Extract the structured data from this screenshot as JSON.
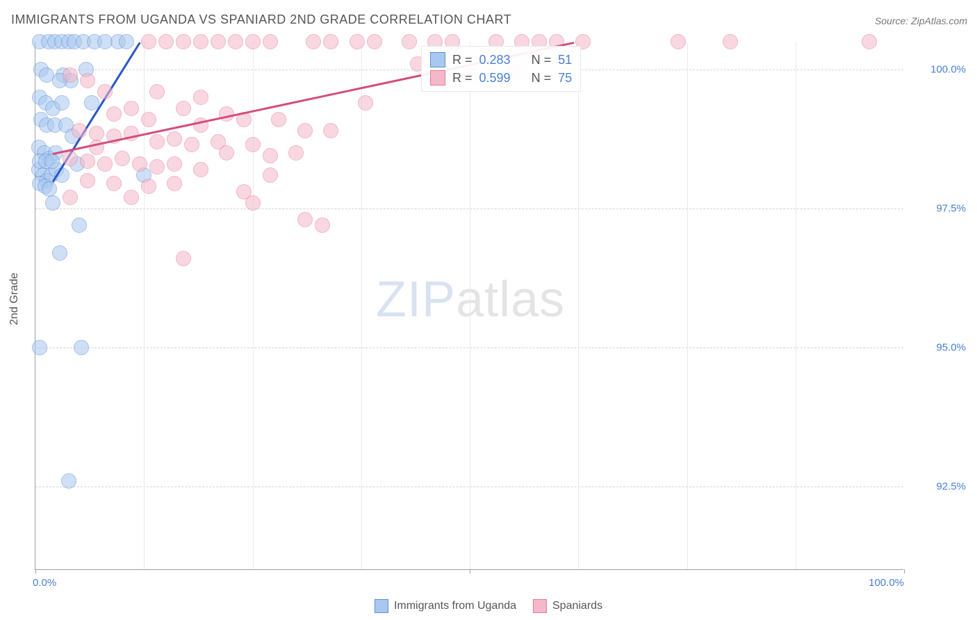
{
  "title": "IMMIGRANTS FROM UGANDA VS SPANIARD 2ND GRADE CORRELATION CHART",
  "source": "Source: ZipAtlas.com",
  "ylabel": "2nd Grade",
  "watermark": {
    "zip": "ZIP",
    "atlas": "atlas"
  },
  "chart": {
    "type": "scatter",
    "background_color": "#ffffff",
    "grid_color": "#d0d3d8",
    "axis_color": "#9aa0a6",
    "xlim": [
      0,
      100
    ],
    "ylim": [
      91.0,
      100.5
    ],
    "xtick_positions": [
      0,
      50,
      100
    ],
    "xtick_labels": [
      "0.0%",
      "",
      "100.0%"
    ],
    "inner_vgrids": [
      12.5,
      25,
      37.5,
      50,
      62.5,
      75,
      87.5
    ],
    "ytick_positions": [
      92.5,
      95.0,
      97.5,
      100.0
    ],
    "ytick_labels": [
      "92.5%",
      "95.0%",
      "97.5%",
      "100.0%"
    ],
    "marker_radius": 11,
    "marker_opacity": 0.55,
    "series": [
      {
        "name": "Immigrants from Uganda",
        "color_fill": "#a9c8f0",
        "color_stroke": "#5d8fd6",
        "r": 0.283,
        "n": 51,
        "trend": {
          "x1": 2,
          "y1": 98.0,
          "x2": 12,
          "y2": 100.5,
          "color": "#2a55c9"
        },
        "points": [
          [
            0.5,
            100.5
          ],
          [
            1.5,
            100.5
          ],
          [
            2.2,
            100.5
          ],
          [
            3,
            100.5
          ],
          [
            3.8,
            100.5
          ],
          [
            4.5,
            100.5
          ],
          [
            5.5,
            100.5
          ],
          [
            6.8,
            100.5
          ],
          [
            8,
            100.5
          ],
          [
            9.5,
            100.5
          ],
          [
            10.5,
            100.5
          ],
          [
            0.6,
            100.0
          ],
          [
            1.3,
            99.9
          ],
          [
            3.2,
            99.9
          ],
          [
            4.1,
            99.8
          ],
          [
            5.8,
            100.0
          ],
          [
            0.5,
            99.5
          ],
          [
            1.2,
            99.4
          ],
          [
            2.0,
            99.3
          ],
          [
            3.0,
            99.4
          ],
          [
            0.6,
            99.1
          ],
          [
            1.3,
            99.0
          ],
          [
            2.2,
            99.0
          ],
          [
            0.4,
            98.6
          ],
          [
            1.0,
            98.5
          ],
          [
            1.6,
            98.4
          ],
          [
            2.3,
            98.5
          ],
          [
            0.4,
            98.2
          ],
          [
            0.9,
            98.1
          ],
          [
            1.3,
            98.0
          ],
          [
            1.8,
            98.1
          ],
          [
            2.4,
            98.2
          ],
          [
            3.0,
            98.1
          ],
          [
            0.5,
            97.95
          ],
          [
            1.1,
            97.9
          ],
          [
            1.6,
            97.85
          ],
          [
            2.0,
            97.6
          ],
          [
            4.8,
            98.3
          ],
          [
            12.5,
            98.1
          ],
          [
            0.5,
            98.35
          ],
          [
            1.2,
            98.35
          ],
          [
            1.9,
            98.35
          ],
          [
            3.5,
            99.0
          ],
          [
            5,
            97.2
          ],
          [
            2.8,
            96.7
          ],
          [
            0.5,
            95.0
          ],
          [
            5.3,
            95.0
          ],
          [
            3.8,
            92.6
          ],
          [
            4.2,
            98.8
          ],
          [
            2.8,
            99.8
          ],
          [
            6.5,
            99.4
          ]
        ]
      },
      {
        "name": "Spaniards",
        "color_fill": "#f5b8c9",
        "color_stroke": "#e47a9a",
        "r": 0.599,
        "n": 75,
        "trend": {
          "x1": 2,
          "y1": 98.5,
          "x2": 62,
          "y2": 100.5,
          "color": "#d44d7a"
        },
        "points": [
          [
            13,
            100.5
          ],
          [
            15,
            100.5
          ],
          [
            17,
            100.5
          ],
          [
            19,
            100.5
          ],
          [
            21,
            100.5
          ],
          [
            23,
            100.5
          ],
          [
            25,
            100.5
          ],
          [
            27,
            100.5
          ],
          [
            32,
            100.5
          ],
          [
            34,
            100.5
          ],
          [
            37,
            100.5
          ],
          [
            39,
            100.5
          ],
          [
            43,
            100.5
          ],
          [
            46,
            100.5
          ],
          [
            48,
            100.5
          ],
          [
            53,
            100.5
          ],
          [
            56,
            100.5
          ],
          [
            58,
            100.5
          ],
          [
            60,
            100.5
          ],
          [
            63,
            100.5
          ],
          [
            74,
            100.5
          ],
          [
            80,
            100.5
          ],
          [
            96,
            100.5
          ],
          [
            44,
            100.1
          ],
          [
            50,
            99.9
          ],
          [
            55,
            99.95
          ],
          [
            9,
            99.2
          ],
          [
            11,
            99.3
          ],
          [
            13,
            99.1
          ],
          [
            17,
            99.3
          ],
          [
            22,
            99.2
          ],
          [
            24,
            99.1
          ],
          [
            28,
            99.1
          ],
          [
            5,
            98.9
          ],
          [
            7,
            98.85
          ],
          [
            9,
            98.8
          ],
          [
            11,
            98.85
          ],
          [
            14,
            98.7
          ],
          [
            16,
            98.75
          ],
          [
            18,
            98.65
          ],
          [
            21,
            98.7
          ],
          [
            25,
            98.65
          ],
          [
            4,
            98.4
          ],
          [
            6,
            98.35
          ],
          [
            8,
            98.3
          ],
          [
            10,
            98.4
          ],
          [
            12,
            98.3
          ],
          [
            14,
            98.25
          ],
          [
            16,
            98.3
          ],
          [
            19,
            98.2
          ],
          [
            27,
            98.45
          ],
          [
            30,
            98.5
          ],
          [
            6,
            98.0
          ],
          [
            9,
            97.95
          ],
          [
            13,
            97.9
          ],
          [
            16,
            97.95
          ],
          [
            4,
            97.7
          ],
          [
            11,
            97.7
          ],
          [
            24,
            97.8
          ],
          [
            27,
            98.1
          ],
          [
            31,
            97.3
          ],
          [
            33,
            97.2
          ],
          [
            25,
            97.6
          ],
          [
            17,
            96.6
          ],
          [
            7,
            98.6
          ],
          [
            19,
            99.0
          ],
          [
            31,
            98.9
          ],
          [
            34,
            98.9
          ],
          [
            22,
            98.5
          ],
          [
            8,
            99.6
          ],
          [
            14,
            99.6
          ],
          [
            19,
            99.5
          ],
          [
            38,
            99.4
          ],
          [
            4,
            99.9
          ],
          [
            6,
            99.8
          ]
        ]
      }
    ]
  },
  "legend_bottom": [
    {
      "label": "Immigrants from Uganda",
      "fill": "#a9c8f0",
      "stroke": "#5d8fd6"
    },
    {
      "label": "Spaniards",
      "fill": "#f5b8c9",
      "stroke": "#e47a9a"
    }
  ]
}
